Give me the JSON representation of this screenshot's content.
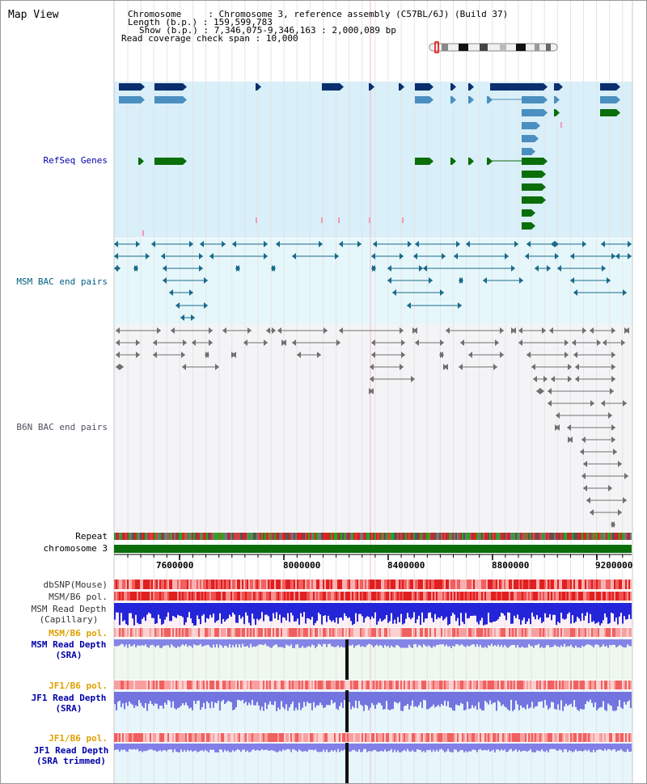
{
  "title": "Map View",
  "info": {
    "chromosome_key": "Chromosome",
    "chromosome_value": "Chromosome 3, reference assembly (C57BL/6J) (Build 37)",
    "length_key": "Length (b.p.)",
    "length_value": "159,599,783",
    "show_key": "Show (b.p.)",
    "show_value": "7,346,075-9,346,163 : 2,000,089 bp",
    "coverage_key": "Read coverage check span",
    "coverage_value": "10,000",
    "sep": ":"
  },
  "tracks": {
    "refseq": "RefSeq Genes",
    "msm_bac": "MSM BAC end pairs",
    "b6n_bac": "B6N BAC end pairs",
    "repeat": "Repeat",
    "chromosome": "chromosome 3",
    "dbsnp": "dbSNP(Mouse)",
    "msm_b6_pol_1": "MSM/B6 pol.",
    "msm_depth_cap_1": "MSM Read Depth",
    "msm_depth_cap_2": "(Capillary)",
    "msm_b6_pol_2": "MSM/B6 pol.",
    "msm_depth_sra_1": "MSM Read Depth",
    "msm_depth_sra_2": "(SRA)",
    "jf1_b6_pol_1": "JF1/B6 pol.",
    "jf1_depth_sra_1": "JF1 Read Depth",
    "jf1_depth_sra_2": "(SRA)",
    "jf1_b6_pol_2": "JF1/B6 pol.",
    "jf1_depth_trim_1": "JF1 Read Depth",
    "jf1_depth_trim_2": "(SRA trimmed)"
  },
  "axis_ticks": [
    "7600000",
    "8000000",
    "8400000",
    "8800000",
    "9200000"
  ],
  "colors": {
    "refseq_dark": "#0b2f6e",
    "refseq_mid": "#4a8fc0",
    "refseq_green": "#0a6e0a",
    "refseq_bg": "#d8eff9",
    "msm_bac": "#1a6a8a",
    "b6n_bac": "#707070",
    "chrom_green": "#0a6e0a",
    "label_blue": "#0000aa",
    "label_orange": "#e0a000",
    "label_teal": "#005f80",
    "depth_blue": "#1f22d8"
  }
}
